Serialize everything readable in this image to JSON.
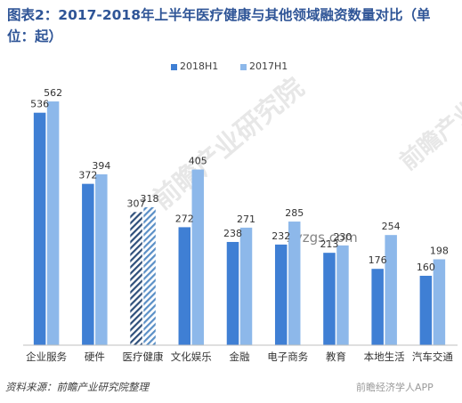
{
  "title": "图表2：2017-2018年上半年医疗健康与其他领域融资数量对比（单位：起）",
  "source_text": "资料来源：前瞻产业研究院整理",
  "watermark_brand": "前瞻产业研究院",
  "watermark_site": "xyzgs.com",
  "corner_brand": "前瞻经济学人APP",
  "colors": {
    "series_2018": "#3f7fd4",
    "series_2017": "#8db8ea",
    "highlight_2018": "#3f7fd4",
    "highlight_2017": "#8db8ea",
    "title": "#2f5597"
  },
  "chart_data": {
    "type": "bar",
    "title": "图表2：2017-2018年上半年医疗健康与其他领域融资数量对比（单位：起）",
    "categories": [
      "企业服务",
      "硬件",
      "医疗健康",
      "文化娱乐",
      "金融",
      "电子商务",
      "教育",
      "本地生活",
      "汽车交通"
    ],
    "series": [
      {
        "name": "2018H1",
        "values": [
          536,
          372,
          307,
          272,
          238,
          232,
          213,
          176,
          160
        ]
      },
      {
        "name": "2017H1",
        "values": [
          562,
          394,
          318,
          405,
          271,
          285,
          230,
          254,
          198
        ]
      }
    ],
    "highlight_category": "医疗健康",
    "ylim": [
      0,
      620
    ],
    "xlabel": "",
    "ylabel": "",
    "grid": false,
    "legend_position": "top-center"
  }
}
